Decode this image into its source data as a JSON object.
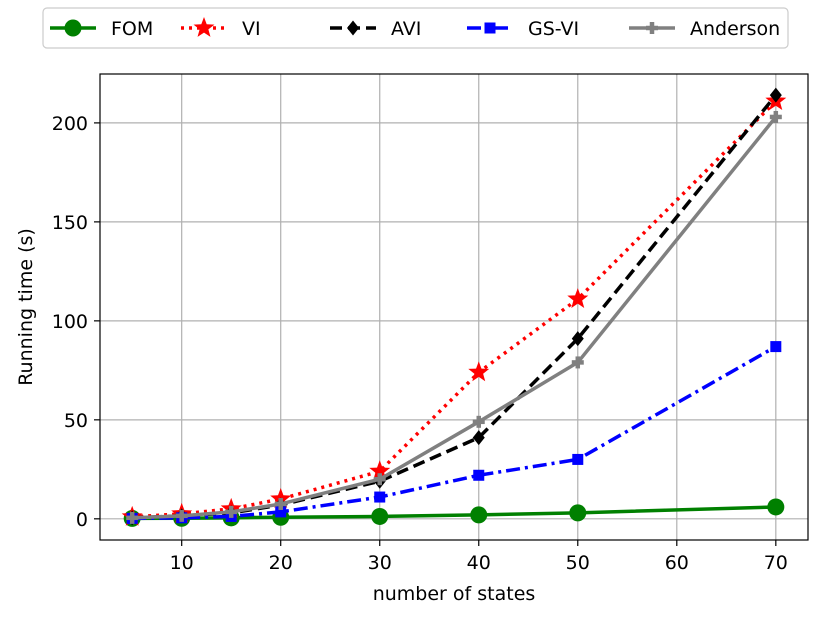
{
  "chart_data": {
    "type": "line",
    "title": "",
    "xlabel": "number of states",
    "ylabel": "Running time (s)",
    "xlim": [
      1.75,
      73.25
    ],
    "ylim": [
      -10.7,
      224.7
    ],
    "xticks": [
      10,
      20,
      30,
      40,
      50,
      60,
      70
    ],
    "yticks": [
      0,
      50,
      100,
      150,
      200
    ],
    "grid": true,
    "legend_position": "top",
    "x": [
      5,
      10,
      15,
      20,
      30,
      40,
      50,
      70
    ],
    "series": [
      {
        "name": "FOM",
        "color": "#008000",
        "marker": "circle",
        "dash": "solid",
        "values": [
          0.2,
          0.3,
          0.5,
          0.8,
          1.2,
          2.0,
          3.0,
          6.0
        ]
      },
      {
        "name": "VI",
        "color": "#ff0000",
        "marker": "star",
        "dash": "dotted",
        "values": [
          1.0,
          2.5,
          5.0,
          10.0,
          24.0,
          74.0,
          111.0,
          211.0
        ]
      },
      {
        "name": "AVI",
        "color": "#000000",
        "marker": "diamond",
        "dash": "dashed",
        "values": [
          0.5,
          1.5,
          3.0,
          7.0,
          19.0,
          41.0,
          91.0,
          214.0
        ]
      },
      {
        "name": "GS-VI",
        "color": "#0000ff",
        "marker": "square",
        "dash": "dashdot",
        "values": [
          0.2,
          0.5,
          1.2,
          3.5,
          11.0,
          22.0,
          30.0,
          87.0
        ]
      },
      {
        "name": "Anderson",
        "color": "#808080",
        "marker": "plus",
        "dash": "solid",
        "values": [
          0.5,
          1.5,
          3.5,
          7.5,
          20.0,
          49.0,
          79.0,
          203.0
        ]
      }
    ]
  }
}
